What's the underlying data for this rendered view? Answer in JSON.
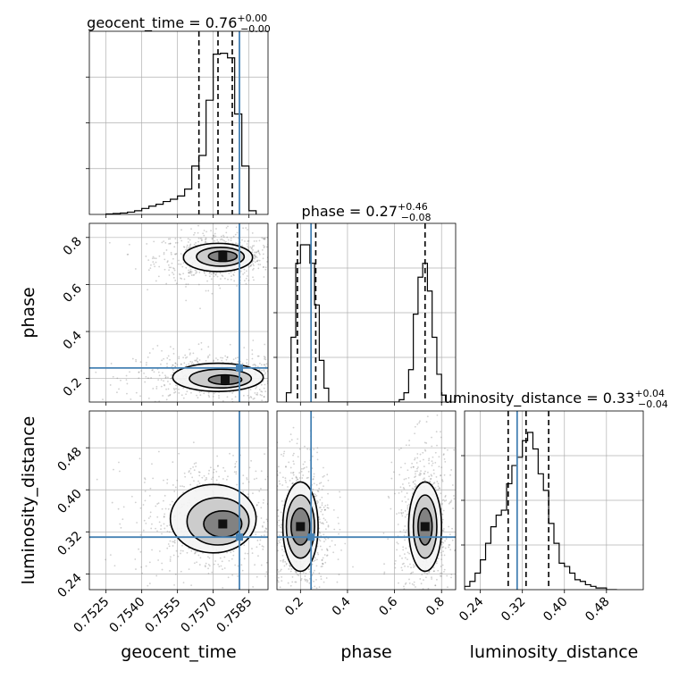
{
  "chart_data": {
    "type": "corner",
    "parameters": [
      "geocent_time",
      "phase",
      "luminosity_distance"
    ],
    "titles": [
      {
        "param": "geocent_time",
        "median": "0.76",
        "plus": "+0.00",
        "minus": "−0.00"
      },
      {
        "param": "phase",
        "median": "0.27",
        "plus": "+0.46",
        "minus": "−0.08"
      },
      {
        "param": "luminosity_distance",
        "median": "0.33",
        "plus": "+0.04",
        "minus": "−0.04"
      }
    ],
    "axes": {
      "geocent_time": {
        "range": [
          0.7518,
          0.7593
        ],
        "ticks": [
          "0.7525",
          "0.7540",
          "0.7555",
          "0.7570",
          "0.7585"
        ]
      },
      "phase": {
        "range": [
          0.1,
          0.86
        ],
        "ticks": [
          "0.2",
          "0.4",
          "0.6",
          "0.8"
        ]
      },
      "luminosity_distance": {
        "range": [
          0.21,
          0.55
        ],
        "ticks": [
          "0.24",
          "0.32",
          "0.40",
          "0.48"
        ]
      }
    },
    "truths": {
      "geocent_time": 0.7581,
      "phase": 0.245,
      "luminosity_distance": 0.31
    },
    "quantiles": {
      "geocent_time": [
        0.7564,
        0.7572,
        0.7578
      ],
      "phase": [
        0.187,
        0.265,
        0.73
      ],
      "luminosity_distance": [
        0.293,
        0.327,
        0.37
      ]
    },
    "histograms": {
      "geocent_time": {
        "edges": [
          0.7525,
          0.7528,
          0.7531,
          0.7534,
          0.7537,
          0.754,
          0.7543,
          0.7546,
          0.7549,
          0.7552,
          0.7555,
          0.7558,
          0.7561,
          0.7564,
          0.7567,
          0.757,
          0.7573,
          0.7576,
          0.7579,
          0.7582,
          0.7585,
          0.7588
        ],
        "counts": [
          1,
          2,
          3,
          5,
          8,
          13,
          18,
          22,
          28,
          33,
          40,
          55,
          105,
          128,
          248,
          348,
          350,
          340,
          218,
          105,
          8
        ]
      },
      "phase": {
        "edges": [
          0.14,
          0.16,
          0.18,
          0.2,
          0.22,
          0.24,
          0.26,
          0.28,
          0.3,
          0.32,
          0.34,
          0.36,
          0.38,
          0.4,
          0.42,
          0.44,
          0.46,
          0.48,
          0.5,
          0.52,
          0.54,
          0.56,
          0.58,
          0.6,
          0.62,
          0.64,
          0.66,
          0.68,
          0.7,
          0.72,
          0.74,
          0.76,
          0.78,
          0.8,
          0.82
        ],
        "counts": [
          4,
          28,
          60,
          68,
          68,
          60,
          42,
          18,
          6,
          0,
          0,
          0,
          0,
          0,
          0,
          0,
          0,
          0,
          0,
          0,
          0,
          0,
          0,
          0,
          1,
          4,
          14,
          38,
          54,
          60,
          48,
          28,
          12,
          3
        ]
      },
      "luminosity_distance": {
        "edges": [
          0.21,
          0.22,
          0.23,
          0.24,
          0.25,
          0.26,
          0.27,
          0.28,
          0.29,
          0.3,
          0.31,
          0.32,
          0.33,
          0.34,
          0.35,
          0.36,
          0.37,
          0.38,
          0.39,
          0.4,
          0.41,
          0.42,
          0.43,
          0.44,
          0.45,
          0.46,
          0.47,
          0.48,
          0.49,
          0.5
        ],
        "counts": [
          2,
          5,
          10,
          18,
          28,
          38,
          45,
          48,
          64,
          75,
          80,
          90,
          95,
          85,
          70,
          60,
          40,
          28,
          16,
          14,
          10,
          6,
          5,
          3,
          2,
          1,
          1,
          0,
          0
        ]
      }
    },
    "contours": {
      "phase_vs_geocent_time": [
        {
          "cx": 0.7572,
          "cy": 0.715,
          "rx": 0.00145,
          "ry": 0.06,
          "level": 1
        },
        {
          "cx": 0.7573,
          "cy": 0.718,
          "rx": 0.001,
          "ry": 0.04,
          "level": 2
        },
        {
          "cx": 0.7574,
          "cy": 0.72,
          "rx": 0.0006,
          "ry": 0.022,
          "level": 3
        },
        {
          "cx": 0.7572,
          "cy": 0.205,
          "rx": 0.0019,
          "ry": 0.06,
          "level": 1
        },
        {
          "cx": 0.7573,
          "cy": 0.2,
          "rx": 0.0013,
          "ry": 0.04,
          "level": 2
        },
        {
          "cx": 0.7575,
          "cy": 0.195,
          "rx": 0.0007,
          "ry": 0.02,
          "level": 3
        }
      ],
      "luminosity_distance_vs_geocent_time": [
        {
          "cx": 0.757,
          "cy": 0.345,
          "rx": 0.0018,
          "ry": 0.065,
          "level": 1
        },
        {
          "cx": 0.7572,
          "cy": 0.34,
          "rx": 0.0013,
          "ry": 0.045,
          "level": 2
        },
        {
          "cx": 0.7574,
          "cy": 0.335,
          "rx": 0.0008,
          "ry": 0.025,
          "level": 3
        }
      ],
      "luminosity_distance_vs_phase": [
        {
          "cx": 0.2,
          "cy": 0.33,
          "rx": 0.075,
          "ry": 0.085,
          "level": 1
        },
        {
          "cx": 0.2,
          "cy": 0.33,
          "rx": 0.06,
          "ry": 0.06,
          "level": 2
        },
        {
          "cx": 0.2,
          "cy": 0.33,
          "rx": 0.04,
          "ry": 0.035,
          "level": 3
        },
        {
          "cx": 0.73,
          "cy": 0.33,
          "rx": 0.07,
          "ry": 0.085,
          "level": 1
        },
        {
          "cx": 0.73,
          "cy": 0.33,
          "rx": 0.05,
          "ry": 0.06,
          "level": 2
        },
        {
          "cx": 0.73,
          "cy": 0.33,
          "rx": 0.03,
          "ry": 0.035,
          "level": 3
        }
      ]
    },
    "grid": true,
    "colors": {
      "truth": "#4682b4",
      "hist": "#000000",
      "grid": "#b0b0b0",
      "points": "#777777"
    }
  }
}
